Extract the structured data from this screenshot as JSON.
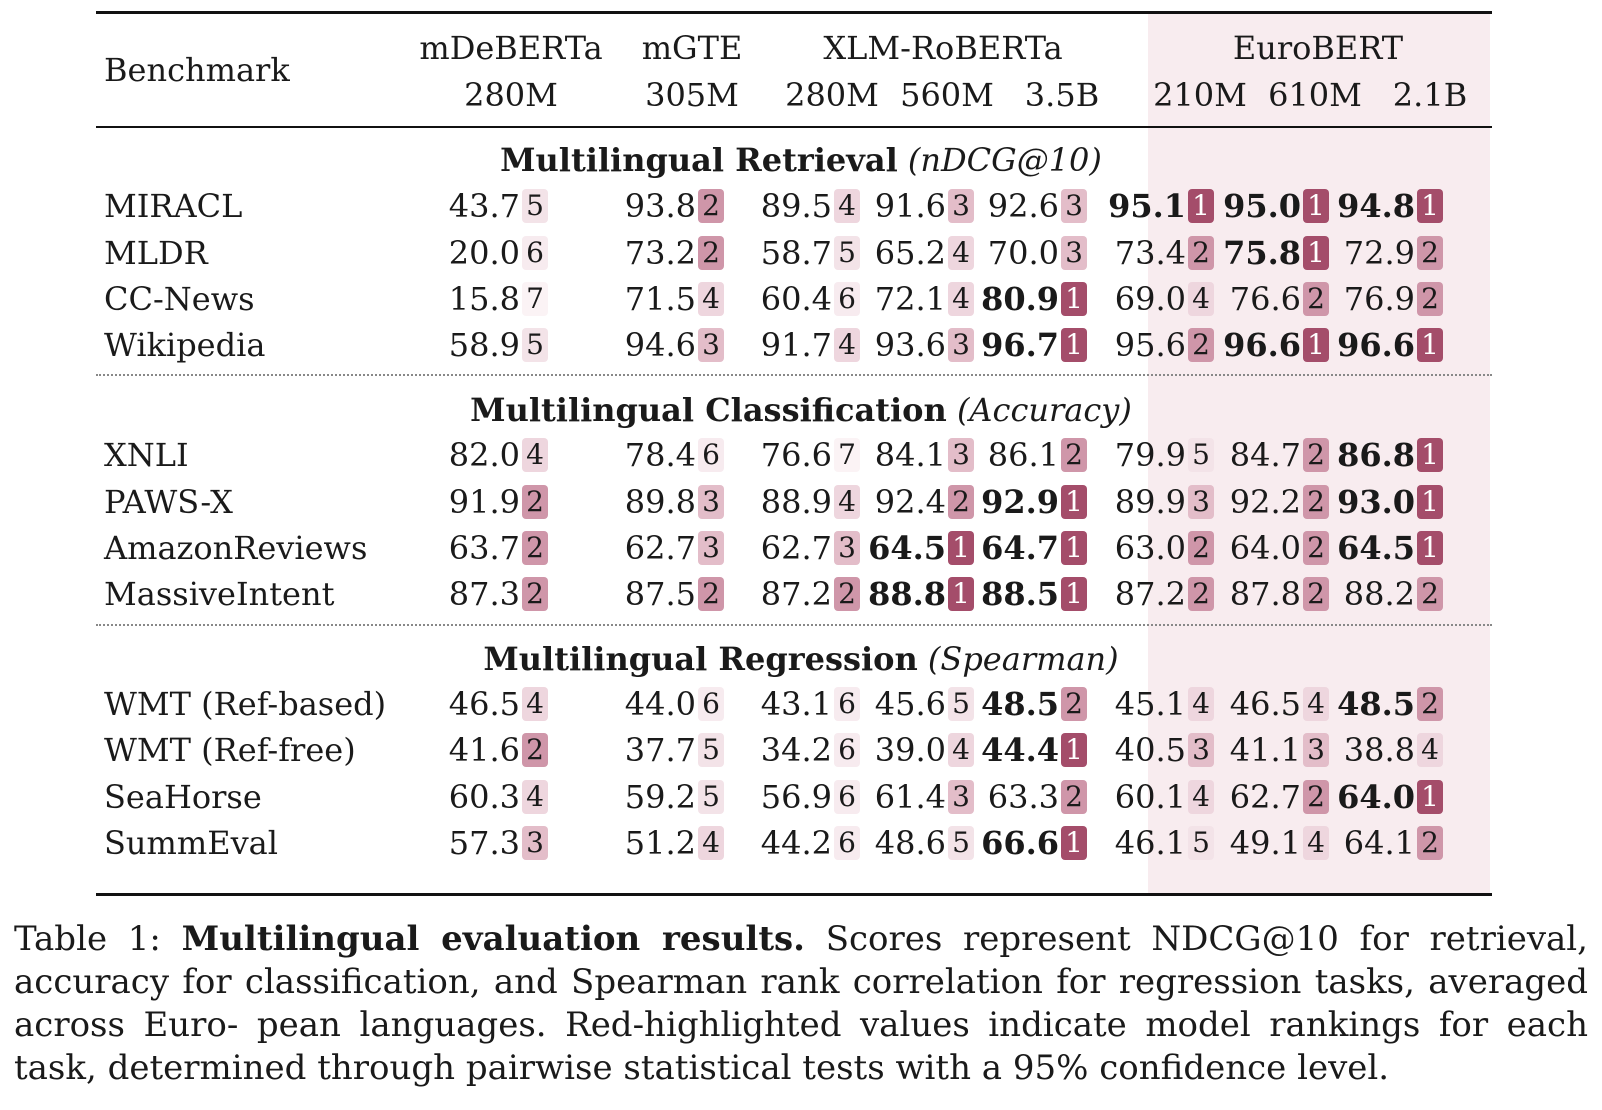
{
  "table": {
    "benchmark_header": "Benchmark",
    "model_groups": [
      "mDeBERTa",
      "mGTE",
      "XLM-RoBERTa",
      "EuroBERT"
    ],
    "model_sizes": [
      "280M",
      "305M",
      "280M",
      "560M",
      "3.5B",
      "210M",
      "610M",
      "2.1B"
    ],
    "sections": [
      {
        "title": "Multilingual Retrieval",
        "metric": "(nDCG@10)",
        "rows": [
          {
            "name": "MIRACL",
            "cells": [
              [
                "43.7",
                "5"
              ],
              [
                "93.8",
                "2"
              ],
              [
                "89.5",
                "4"
              ],
              [
                "91.6",
                "3"
              ],
              [
                "92.6",
                "3"
              ],
              [
                "95.1",
                "1"
              ],
              [
                "95.0",
                "1"
              ],
              [
                "94.8",
                "1"
              ]
            ]
          },
          {
            "name": "MLDR",
            "cells": [
              [
                "20.0",
                "6"
              ],
              [
                "73.2",
                "2"
              ],
              [
                "58.7",
                "5"
              ],
              [
                "65.2",
                "4"
              ],
              [
                "70.0",
                "3"
              ],
              [
                "73.4",
                "2"
              ],
              [
                "75.8",
                "1"
              ],
              [
                "72.9",
                "2"
              ]
            ]
          },
          {
            "name": "CC-News",
            "cells": [
              [
                "15.8",
                "7"
              ],
              [
                "71.5",
                "4"
              ],
              [
                "60.4",
                "6"
              ],
              [
                "72.1",
                "4"
              ],
              [
                "80.9",
                "1"
              ],
              [
                "69.0",
                "4"
              ],
              [
                "76.6",
                "2"
              ],
              [
                "76.9",
                "2"
              ]
            ]
          },
          {
            "name": "Wikipedia",
            "cells": [
              [
                "58.9",
                "5"
              ],
              [
                "94.6",
                "3"
              ],
              [
                "91.7",
                "4"
              ],
              [
                "93.6",
                "3"
              ],
              [
                "96.7",
                "1"
              ],
              [
                "95.6",
                "2"
              ],
              [
                "96.6",
                "1"
              ],
              [
                "96.6",
                "1"
              ]
            ]
          }
        ]
      },
      {
        "title": "Multilingual Classification",
        "metric": "(Accuracy)",
        "rows": [
          {
            "name": "XNLI",
            "cells": [
              [
                "82.0",
                "4"
              ],
              [
                "78.4",
                "6"
              ],
              [
                "76.6",
                "7"
              ],
              [
                "84.1",
                "3"
              ],
              [
                "86.1",
                "2"
              ],
              [
                "79.9",
                "5"
              ],
              [
                "84.7",
                "2"
              ],
              [
                "86.8",
                "1"
              ]
            ]
          },
          {
            "name": "PAWS-X",
            "cells": [
              [
                "91.9",
                "2"
              ],
              [
                "89.8",
                "3"
              ],
              [
                "88.9",
                "4"
              ],
              [
                "92.4",
                "2"
              ],
              [
                "92.9",
                "1"
              ],
              [
                "89.9",
                "3"
              ],
              [
                "92.2",
                "2"
              ],
              [
                "93.0",
                "1"
              ]
            ]
          },
          {
            "name": "AmazonReviews",
            "cells": [
              [
                "63.7",
                "2"
              ],
              [
                "62.7",
                "3"
              ],
              [
                "62.7",
                "3"
              ],
              [
                "64.5",
                "1"
              ],
              [
                "64.7",
                "1"
              ],
              [
                "63.0",
                "2"
              ],
              [
                "64.0",
                "2"
              ],
              [
                "64.5",
                "1"
              ]
            ]
          },
          {
            "name": "MassiveIntent",
            "cells": [
              [
                "87.3",
                "2"
              ],
              [
                "87.5",
                "2"
              ],
              [
                "87.2",
                "2"
              ],
              [
                "88.8",
                "1"
              ],
              [
                "88.5",
                "1"
              ],
              [
                "87.2",
                "2"
              ],
              [
                "87.8",
                "2"
              ],
              [
                "88.2",
                "2"
              ]
            ]
          }
        ]
      },
      {
        "title": "Multilingual Regression",
        "metric": "(Spearman)",
        "rows": [
          {
            "name": "WMT (Ref-based)",
            "cells": [
              [
                "46.5",
                "4"
              ],
              [
                "44.0",
                "6"
              ],
              [
                "43.1",
                "6"
              ],
              [
                "45.6",
                "5"
              ],
              [
                "48.5",
                "2"
              ],
              [
                "45.1",
                "4"
              ],
              [
                "46.5",
                "4"
              ],
              [
                "48.5",
                "2"
              ]
            ]
          },
          {
            "name": "WMT (Ref-free)",
            "cells": [
              [
                "41.6",
                "2"
              ],
              [
                "37.7",
                "5"
              ],
              [
                "34.2",
                "6"
              ],
              [
                "39.0",
                "4"
              ],
              [
                "44.4",
                "1"
              ],
              [
                "40.5",
                "3"
              ],
              [
                "41.1",
                "3"
              ],
              [
                "38.8",
                "4"
              ]
            ]
          },
          {
            "name": "SeaHorse",
            "cells": [
              [
                "60.3",
                "4"
              ],
              [
                "59.2",
                "5"
              ],
              [
                "56.9",
                "6"
              ],
              [
                "61.4",
                "3"
              ],
              [
                "63.3",
                "2"
              ],
              [
                "60.1",
                "4"
              ],
              [
                "62.7",
                "2"
              ],
              [
                "64.0",
                "1"
              ]
            ]
          },
          {
            "name": "SummEval",
            "cells": [
              [
                "57.3",
                "3"
              ],
              [
                "51.2",
                "4"
              ],
              [
                "44.2",
                "6"
              ],
              [
                "48.6",
                "5"
              ],
              [
                "66.6",
                "1"
              ],
              [
                "46.1",
                "5"
              ],
              [
                "49.1",
                "4"
              ],
              [
                "64.1",
                "2"
              ]
            ]
          }
        ]
      }
    ],
    "bold_cells": [
      [
        0,
        0,
        5
      ],
      [
        0,
        0,
        6
      ],
      [
        0,
        0,
        7
      ],
      [
        0,
        1,
        6
      ],
      [
        0,
        2,
        4
      ],
      [
        0,
        3,
        4
      ],
      [
        0,
        3,
        6
      ],
      [
        0,
        3,
        7
      ],
      [
        1,
        0,
        7
      ],
      [
        1,
        1,
        4
      ],
      [
        1,
        1,
        7
      ],
      [
        1,
        2,
        3
      ],
      [
        1,
        2,
        4
      ],
      [
        1,
        2,
        7
      ],
      [
        1,
        3,
        3
      ],
      [
        1,
        3,
        4
      ],
      [
        2,
        0,
        4
      ],
      [
        2,
        0,
        7
      ],
      [
        2,
        1,
        4
      ],
      [
        2,
        2,
        7
      ],
      [
        2,
        3,
        4
      ]
    ]
  },
  "caption": {
    "label": "Table 1:",
    "bold_title": "Multilingual evaluation results.",
    "lines": [
      "Scores represent NDCG@10 for retrieval, accuracy",
      "for classification, and Spearman rank correlation for regression tasks, averaged across Euro-",
      "pean languages. Red-highlighted values indicate model rankings for each task, determined",
      "through pairwise statistical tests with a 95% confidence level."
    ]
  },
  "rank_colors": {
    "1": "#a44d6a",
    "2": "#cf96a9",
    "3": "#e3bdc9",
    "4": "#eed6de",
    "5": "#f3e3e8",
    "6": "#f7ebef",
    "7": "#fbf3f5"
  }
}
